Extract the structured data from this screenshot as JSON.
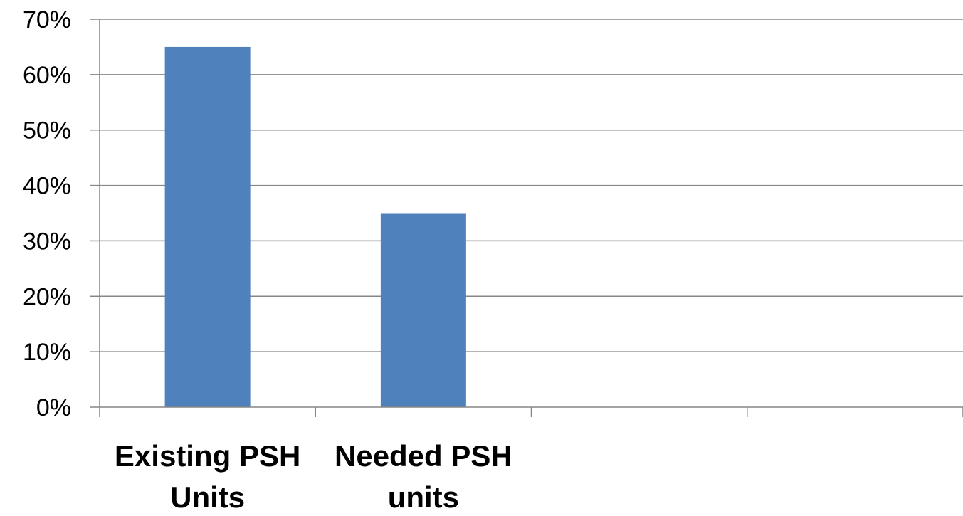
{
  "chart_data": {
    "type": "bar",
    "categories": [
      "Existing PSH Units",
      "Needed PSH units"
    ],
    "category_slots": 4,
    "category_label_lines": [
      [
        "Existing PSH",
        "Units"
      ],
      [
        "Needed PSH",
        "units"
      ]
    ],
    "series": [
      {
        "values": [
          0.65,
          0.35
        ]
      }
    ],
    "ylim": [
      0,
      0.7
    ],
    "yticks": [
      0,
      0.1,
      0.2,
      0.3,
      0.4,
      0.5,
      0.6,
      0.7
    ],
    "ytick_labels": [
      "0%",
      "10%",
      "20%",
      "30%",
      "40%",
      "50%",
      "60%",
      "70%"
    ],
    "title": "",
    "xlabel": "",
    "ylabel": "",
    "grid": "horizontal",
    "legend": "none",
    "colors": {
      "bar": "#4F81BD",
      "grid": "#868686",
      "axis": "#868686"
    }
  }
}
